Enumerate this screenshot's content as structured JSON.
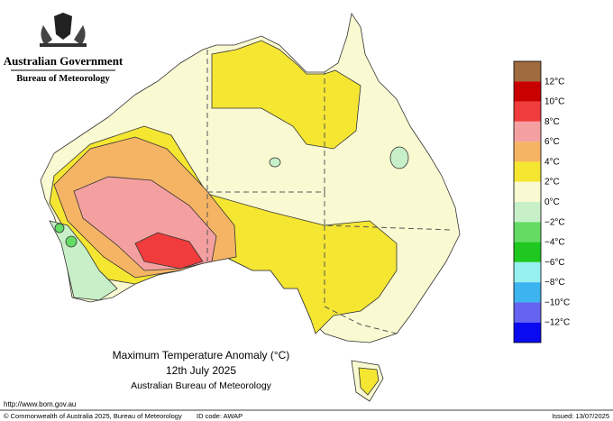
{
  "header": {
    "government": "Australian Government",
    "agency": "Bureau of Meteorology"
  },
  "legend": {
    "colors": [
      "#9e6a3e",
      "#c80000",
      "#f03c3c",
      "#f5a0a0",
      "#f5b464",
      "#f5e632",
      "#fafad2",
      "#c8f0c8",
      "#64dc64",
      "#1ec81e",
      "#96f0f0",
      "#3cb4f0",
      "#6464f0",
      "#0a0af0"
    ],
    "labels": [
      "12°C",
      "10°C",
      "8°C",
      "6°C",
      "4°C",
      "2°C",
      "0°C",
      "−2°C",
      "−4°C",
      "−6°C",
      "−8°C",
      "−10°C",
      "−12°C"
    ]
  },
  "title": {
    "line1": "Maximum Temperature Anomaly (°C)",
    "line2": "12th July 2025",
    "line3": "Australian Bureau of Meteorology"
  },
  "footer": {
    "url": "http://www.bom.gov.au",
    "copyright": "© Commonwealth of Australia 2025, Bureau of Meteorology",
    "id_code": "ID code: AWAP",
    "issued": "Issued: 13/07/2025"
  }
}
